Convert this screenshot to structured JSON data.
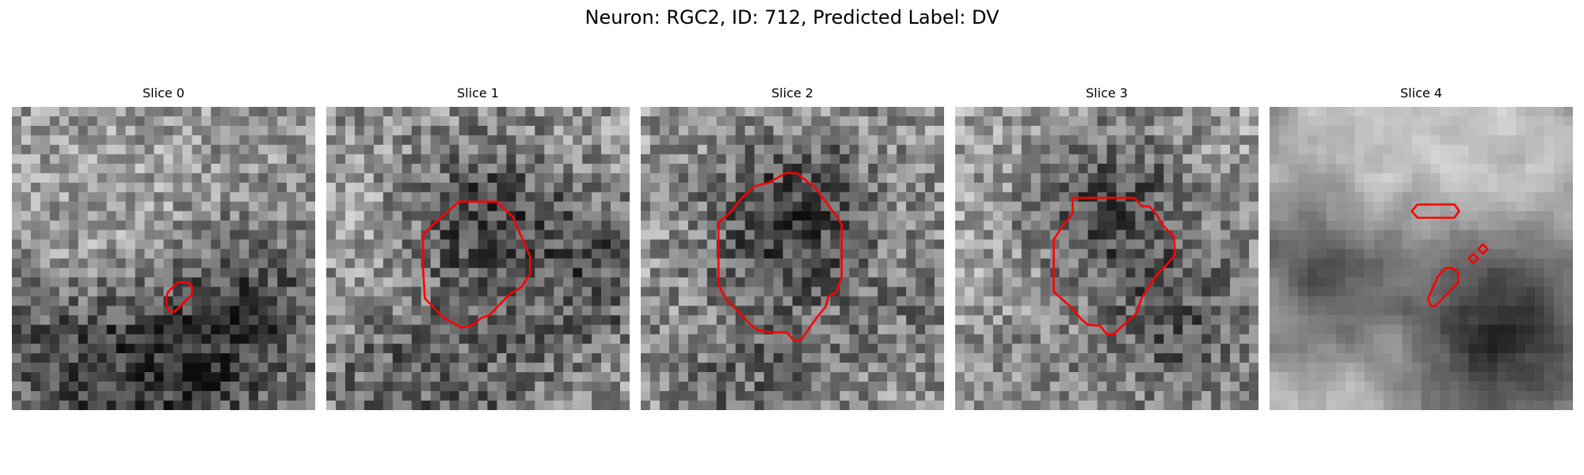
{
  "figure": {
    "title": "Neuron: RGC2, ID: 712, Predicted Label: DV"
  },
  "panels": [
    {
      "title": "Slice 0"
    },
    {
      "title": "Slice 1"
    },
    {
      "title": "Slice 2"
    },
    {
      "title": "Slice 3"
    },
    {
      "title": "Slice 4"
    }
  ],
  "colors": {
    "contour": "#ff0000",
    "background": "#ffffff"
  }
}
